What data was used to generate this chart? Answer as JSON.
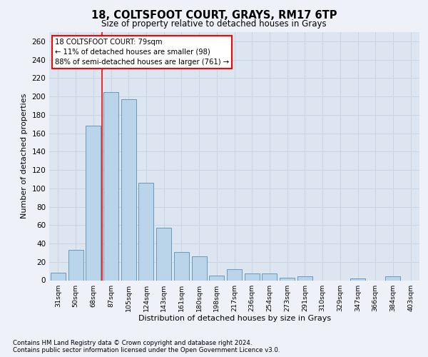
{
  "title1": "18, COLTSFOOT COURT, GRAYS, RM17 6TP",
  "title2": "Size of property relative to detached houses in Grays",
  "xlabel": "Distribution of detached houses by size in Grays",
  "ylabel": "Number of detached properties",
  "categories": [
    "31sqm",
    "50sqm",
    "68sqm",
    "87sqm",
    "105sqm",
    "124sqm",
    "143sqm",
    "161sqm",
    "180sqm",
    "198sqm",
    "217sqm",
    "236sqm",
    "254sqm",
    "273sqm",
    "291sqm",
    "310sqm",
    "329sqm",
    "347sqm",
    "366sqm",
    "384sqm",
    "403sqm"
  ],
  "values": [
    8,
    33,
    168,
    205,
    197,
    106,
    57,
    31,
    26,
    5,
    12,
    7,
    7,
    3,
    4,
    0,
    0,
    2,
    0,
    4,
    0
  ],
  "bar_color": "#bad4ea",
  "bar_edge_color": "#6699bb",
  "redline_index": 2.5,
  "annotation_text": "18 COLTSFOOT COURT: 79sqm\n← 11% of detached houses are smaller (98)\n88% of semi-detached houses are larger (761) →",
  "footnote1": "Contains HM Land Registry data © Crown copyright and database right 2024.",
  "footnote2": "Contains public sector information licensed under the Open Government Licence v3.0.",
  "background_color": "#eef2f8",
  "plot_bg_color": "#dde6f0",
  "grid_color": "#c8d4e4",
  "ylim": [
    0,
    270
  ],
  "yticks": [
    0,
    20,
    40,
    60,
    80,
    100,
    120,
    140,
    160,
    180,
    200,
    220,
    240,
    260
  ]
}
